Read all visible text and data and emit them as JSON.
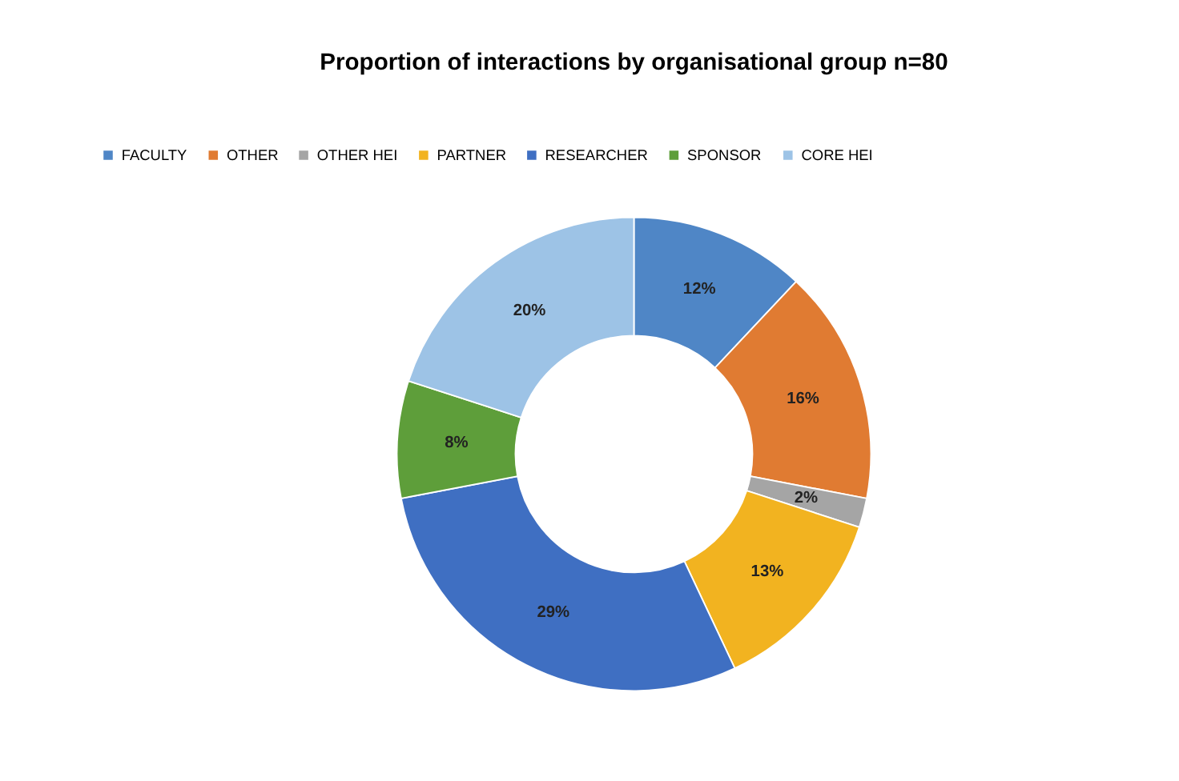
{
  "chart_data": {
    "type": "donut",
    "title": "Proportion of interactions by organisational group n=80",
    "categories": [
      "FACULTY",
      "OTHER",
      "OTHER HEI",
      "PARTNER",
      "RESEARCHER",
      "SPONSOR",
      "CORE HEI"
    ],
    "values": [
      12,
      16,
      2,
      13,
      29,
      8,
      20
    ],
    "value_labels": [
      "12%",
      "16%",
      "2%",
      "13%",
      "29%",
      "8%",
      "20%"
    ],
    "colors": [
      "#4f86c6",
      "#e07b32",
      "#a5a5a5",
      "#f2b320",
      "#3f6fc2",
      "#5e9e3a",
      "#9dc3e6"
    ],
    "legend": "top"
  }
}
